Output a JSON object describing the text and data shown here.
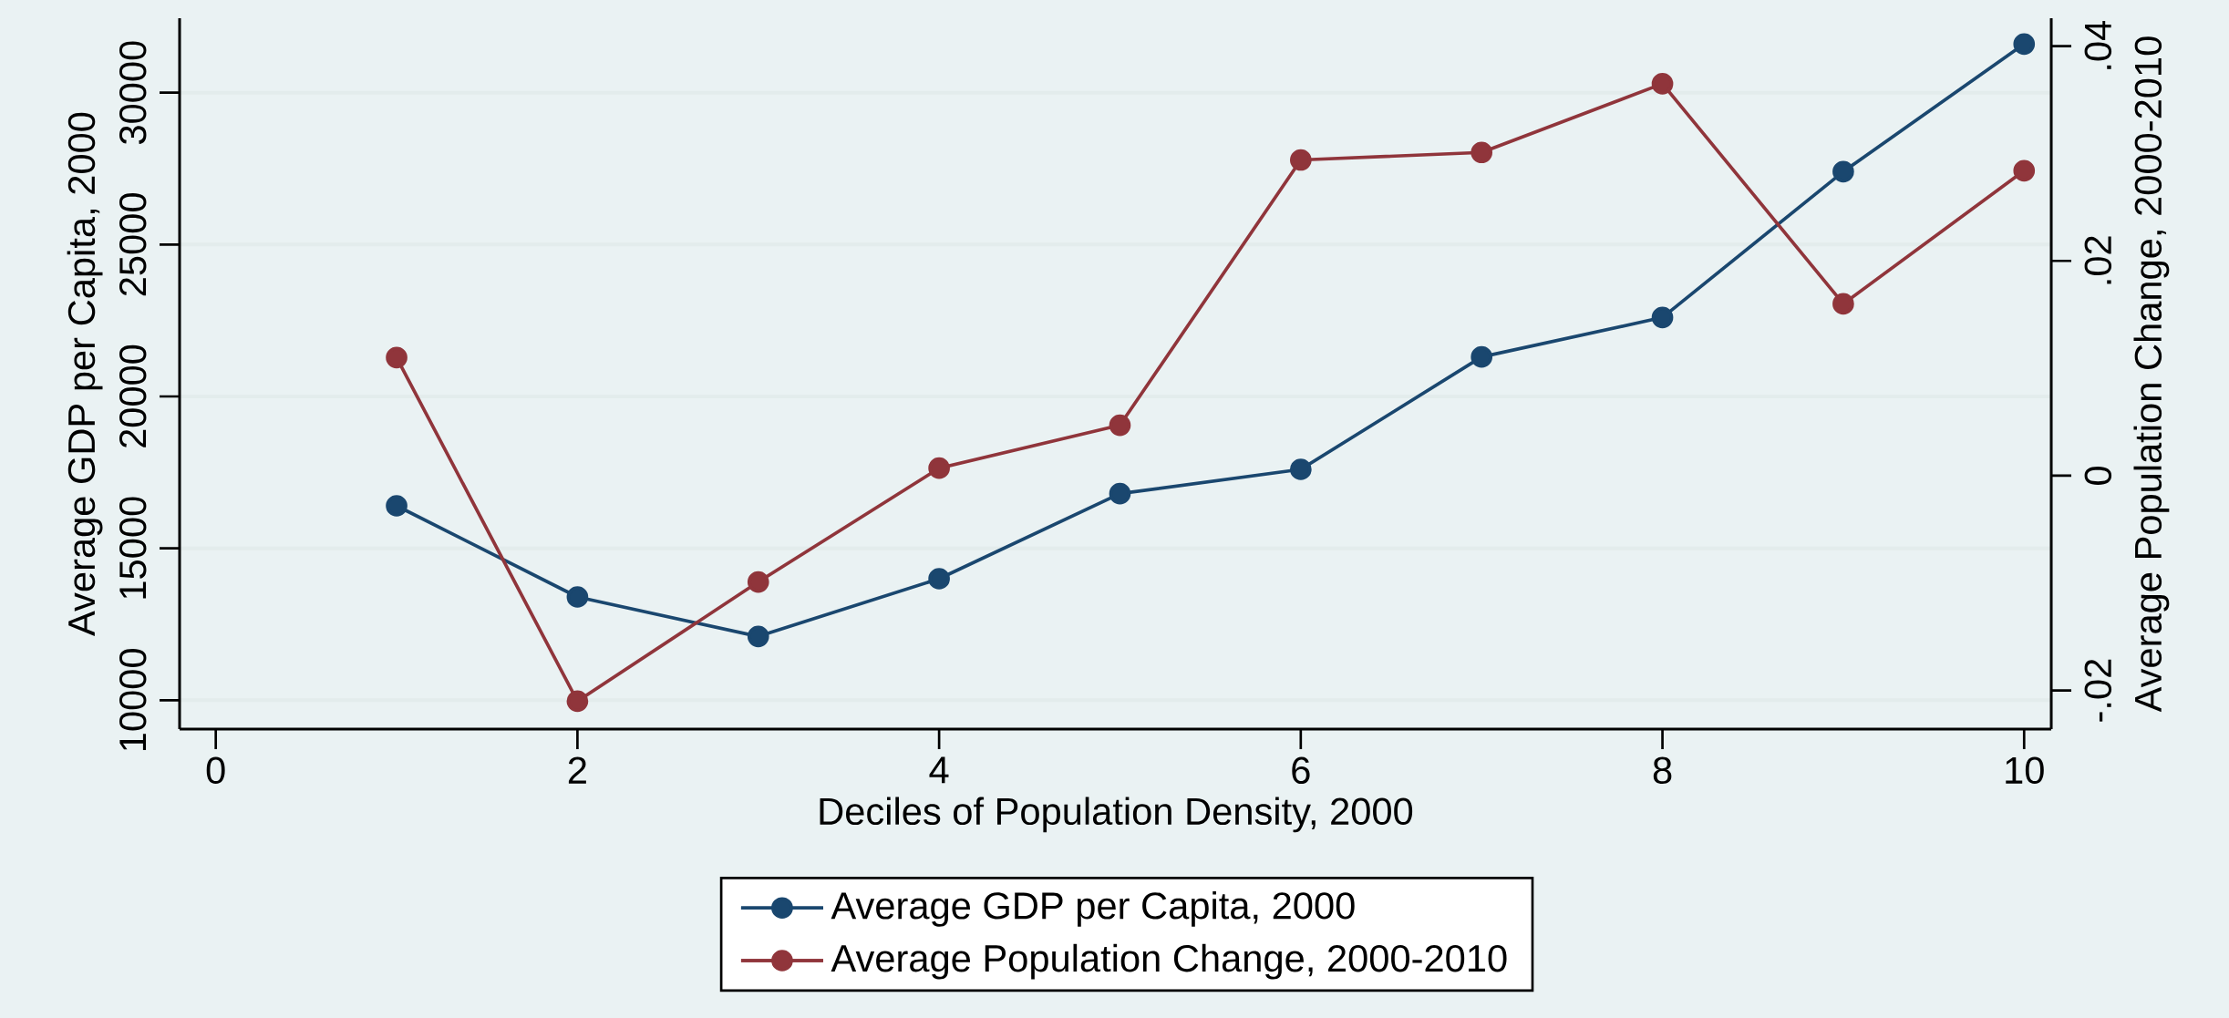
{
  "chart_data": {
    "type": "line",
    "xlabel": "Deciles of Population Density, 2000",
    "ylabel": "Average GDP per Capita, 2000",
    "y2label": "Average Population Change, 2000-2010",
    "x": [
      1,
      2,
      3,
      4,
      5,
      6,
      7,
      8,
      9,
      10
    ],
    "series": [
      {
        "name": "Average GDP per Capita, 2000",
        "color": "#1a476f",
        "values": [
          16400,
          13400,
          12100,
          14000,
          16800,
          17600,
          21300,
          22600,
          27400,
          31600
        ]
      },
      {
        "name": "Average Population Change, 2000-2010",
        "color": "#90353b",
        "axis": "y2",
        "values": [
          0.011,
          -0.021,
          -0.0099,
          0.0007,
          0.0047,
          0.0294,
          0.0301,
          0.0365,
          0.016,
          0.0284
        ]
      }
    ],
    "xlim": [
      -0.2,
      10.15
    ],
    "xticks": [
      0,
      2,
      4,
      6,
      8,
      10
    ],
    "ylim": [
      9050,
      32450
    ],
    "yticks": [
      10000,
      15000,
      20000,
      25000,
      30000
    ],
    "y2lim": [
      -0.0236,
      0.0426
    ],
    "y2ticks": [
      {
        "value": -0.02,
        "label": "-.02"
      },
      {
        "value": 0,
        "label": "0"
      },
      {
        "value": 0.02,
        "label": ".02"
      },
      {
        "value": 0.04,
        "label": ".04"
      }
    ],
    "grid": "y",
    "legend": "bottom",
    "marker": "circle",
    "line_style": "solid"
  }
}
